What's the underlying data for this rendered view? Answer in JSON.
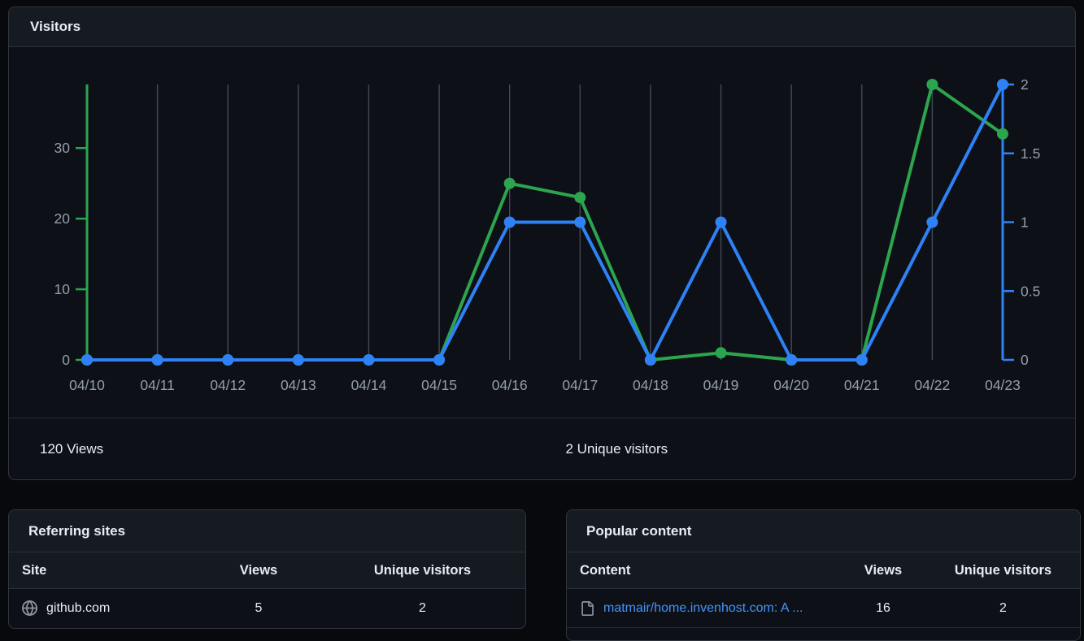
{
  "visitors": {
    "title": "Visitors",
    "summary_views": "120 Views",
    "summary_unique": "2 Unique visitors"
  },
  "chart_data": {
    "type": "line",
    "title": "Visitors",
    "x_labels": [
      "04/10",
      "04/11",
      "04/12",
      "04/13",
      "04/14",
      "04/15",
      "04/16",
      "04/17",
      "04/18",
      "04/19",
      "04/20",
      "04/21",
      "04/22",
      "04/23"
    ],
    "series": [
      {
        "name": "Views",
        "axis": "left",
        "color": "#2da44e",
        "values": [
          0,
          0,
          0,
          0,
          0,
          0,
          25,
          23,
          0,
          1,
          0,
          0,
          39,
          32
        ]
      },
      {
        "name": "Unique visitors",
        "axis": "right",
        "color": "#2f81f7",
        "values": [
          0,
          0,
          0,
          0,
          0,
          0,
          1,
          1,
          0,
          1,
          0,
          0,
          1,
          2
        ]
      }
    ],
    "left_axis": {
      "label": "Views",
      "max": 39,
      "ticks": [
        0,
        10,
        20,
        30
      ],
      "tick_labels": [
        "0",
        "10",
        "20",
        "30"
      ],
      "color": "#2da44e"
    },
    "right_axis": {
      "label": "Unique visitors",
      "max": 2,
      "ticks": [
        0,
        0.5,
        1,
        1.5,
        2
      ],
      "tick_labels": [
        "0",
        "0.5",
        "1",
        "1.5",
        "2"
      ],
      "color": "#2f81f7"
    },
    "grid": "vertical-gridlines",
    "legend": "none"
  },
  "referring_sites": {
    "title": "Referring sites",
    "columns": [
      "Site",
      "Views",
      "Unique visitors"
    ],
    "rows": [
      {
        "site": "github.com",
        "views": "5",
        "unique": "2"
      }
    ]
  },
  "popular_content": {
    "title": "Popular content",
    "columns": [
      "Content",
      "Views",
      "Unique visitors"
    ],
    "rows": [
      {
        "content": "matmair/home.invenhost.com: A ...",
        "views": "16",
        "unique": "2"
      }
    ]
  },
  "colors": {
    "views_green": "#2da44e",
    "unique_blue": "#2f81f7",
    "link_blue": "#4493f8",
    "axis_text": "#949ea8",
    "gridline": "#424a53",
    "panel_bg": "#0d1117",
    "header_bg": "#161b22",
    "border": "#30363d",
    "page_bg": "#07090d"
  }
}
